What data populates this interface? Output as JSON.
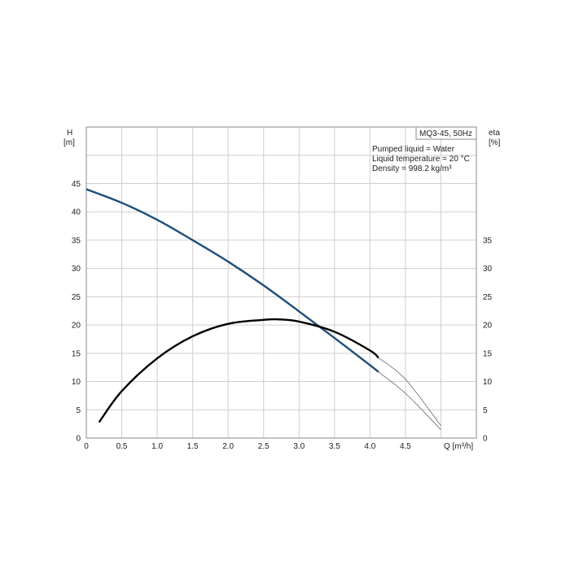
{
  "chart_data": {
    "type": "line",
    "title_box": "MQ3-45, 50Hz",
    "info_lines": [
      "Pumped liquid = Water",
      "Liquid temperature = 20 °C",
      "Density = 998.2 kg/m³"
    ],
    "x_axis": {
      "label": "Q [m³/h]",
      "range": [
        0,
        5.5
      ],
      "tick_labels": [
        "0",
        "0.5",
        "1.0",
        "1.5",
        "2.0",
        "2.5",
        "3.0",
        "3.5",
        "4.0",
        "4.5"
      ]
    },
    "y_left": {
      "label_line1": "H",
      "label_line2": "[m]",
      "range": [
        0,
        55
      ],
      "tick_labels": [
        "0",
        "5",
        "10",
        "15",
        "20",
        "25",
        "30",
        "35",
        "40",
        "45"
      ]
    },
    "y_right": {
      "label_line1": "eta",
      "label_line2": "[%]",
      "range": [
        0,
        55
      ],
      "tick_labels": [
        "0",
        "5",
        "10",
        "15",
        "20",
        "25",
        "30",
        "35"
      ]
    },
    "grid": true,
    "series": [
      {
        "axis": "left",
        "color": "#1f4e79",
        "x": [
          0,
          0.5,
          1.0,
          1.5,
          2.0,
          2.5,
          3.0,
          3.5,
          4.0,
          4.12
        ],
        "y": [
          44.0,
          41.6,
          38.6,
          35.0,
          31.2,
          27.0,
          22.4,
          17.7,
          12.9,
          11.7
        ]
      },
      {
        "axis": "right",
        "color": "#000000",
        "x": [
          0.18,
          0.5,
          1.0,
          1.5,
          2.0,
          2.5,
          2.7,
          3.0,
          3.5,
          4.0,
          4.12
        ],
        "y": [
          2.8,
          8.3,
          14.1,
          18.0,
          20.2,
          20.9,
          21.0,
          20.6,
          18.8,
          15.5,
          14.2
        ]
      },
      {
        "axis": "left",
        "color": "#666666",
        "style": "thin",
        "x": [
          4.12,
          4.5,
          5.0
        ],
        "y": [
          11.7,
          7.9,
          1.5
        ]
      },
      {
        "axis": "right",
        "color": "#666666",
        "style": "thin",
        "x": [
          4.12,
          4.5,
          5.0
        ],
        "y": [
          14.2,
          10.4,
          2.2
        ]
      }
    ]
  }
}
